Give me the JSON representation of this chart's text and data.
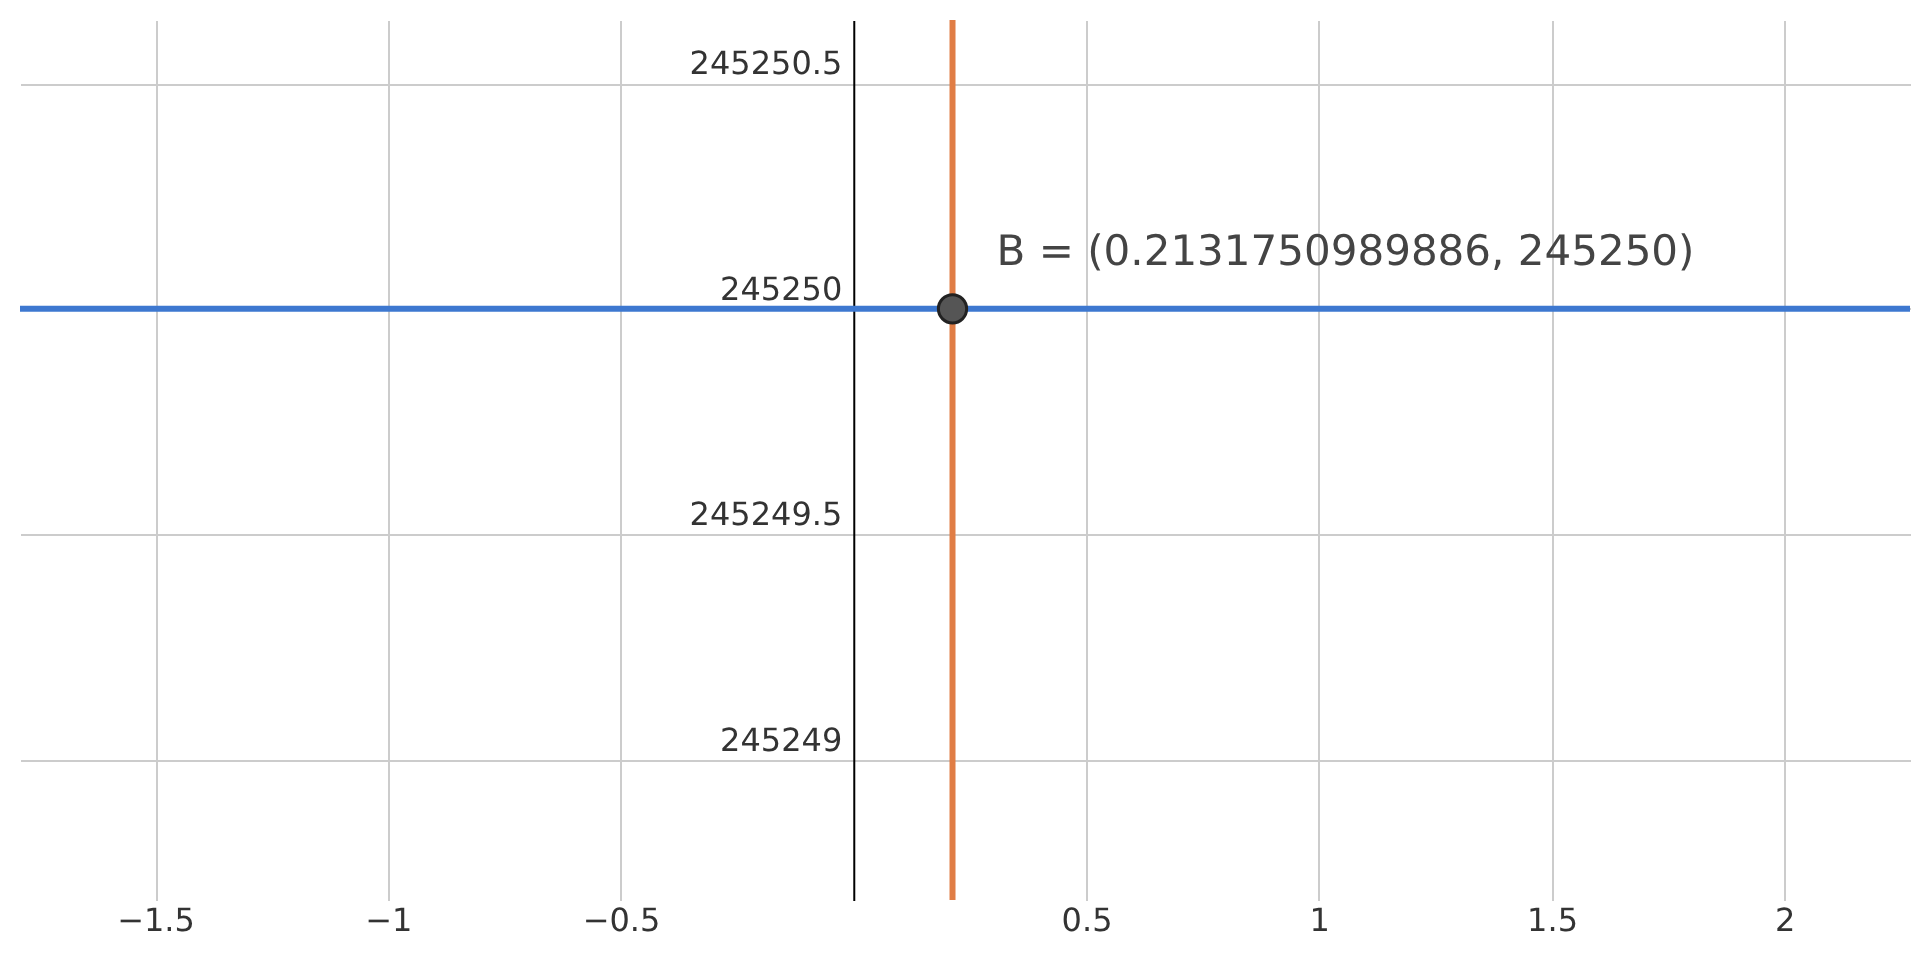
{
  "chart_data": {
    "type": "line",
    "xlim": [
      -1.79,
      2.27
    ],
    "ylim": [
      245248.69,
      245250.64
    ],
    "xticks": [
      -1.5,
      -1,
      -0.5,
      0.5,
      1,
      1.5,
      2
    ],
    "yticks": [
      245249,
      245249.5,
      245250,
      245250.5
    ],
    "grid": true,
    "series": [
      {
        "color": "#3d78d0",
        "x": [
          -1.79,
          2.27
        ],
        "values": [
          245250,
          245250
        ]
      },
      {
        "color": "#e07d45",
        "x": [
          0.2131750989886,
          0.2131750989886
        ],
        "values": [
          245248.69,
          245250.64
        ]
      },
      {
        "type": "scatter",
        "color": "#555555",
        "marker": "circle",
        "x": [
          0.2131750989886
        ],
        "values": [
          245250
        ]
      }
    ],
    "annotations": [
      {
        "text": "B = (0.2131750989886, 245250)",
        "x": 0.2131750989886,
        "y": 245250
      }
    ]
  }
}
